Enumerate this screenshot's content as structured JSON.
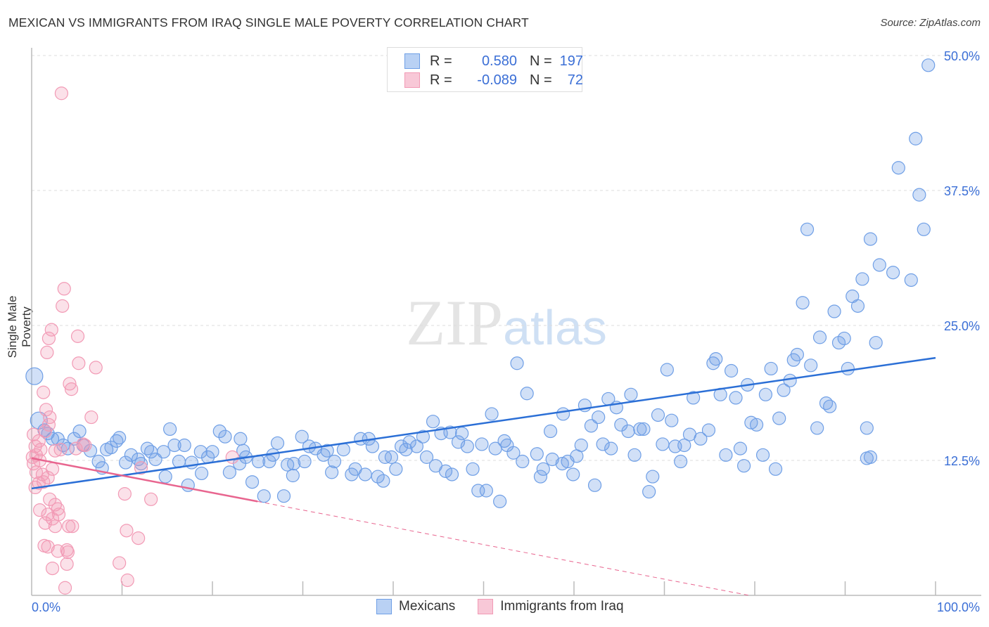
{
  "chart_data": {
    "type": "scatter",
    "title": "MEXICAN VS IMMIGRANTS FROM IRAQ SINGLE MALE POVERTY CORRELATION CHART",
    "source": "Source: ZipAtlas.com",
    "xlabel": "",
    "ylabel": "Single Male Poverty",
    "xlim": [
      0,
      100
    ],
    "ylim": [
      0,
      52
    ],
    "x_tick_labels": [
      "0.0%",
      "100.0%"
    ],
    "y_ticks": [
      12.5,
      25.0,
      37.5,
      50.0
    ],
    "y_tick_labels": [
      "12.5%",
      "25.0%",
      "37.5%",
      "50.0%"
    ],
    "grid": true,
    "watermark": "ZIPatlas",
    "legend": {
      "placement": "top-center",
      "rows": [
        {
          "r_label": "R =",
          "r_value": "0.580",
          "n_label": "N =",
          "n_value": "197"
        },
        {
          "r_label": "R =",
          "r_value": "-0.089",
          "n_label": "N =",
          "n_value": "72"
        }
      ]
    },
    "series": [
      {
        "name": "Mexicans",
        "color": "#6f9fe6",
        "line_color": "#2b6fd6",
        "trend": {
          "x0": 0,
          "y0": 9.9,
          "x1": 100,
          "y1": 22.0
        },
        "points": [
          [
            99.2,
            49.1
          ],
          [
            97.8,
            42.3
          ],
          [
            95.9,
            39.6
          ],
          [
            98.2,
            37.1
          ],
          [
            98.7,
            33.9
          ],
          [
            85.8,
            33.9
          ],
          [
            92.8,
            33.0
          ],
          [
            93.8,
            30.6
          ],
          [
            95.3,
            29.9
          ],
          [
            97.3,
            29.2
          ],
          [
            91.9,
            29.3
          ],
          [
            90.8,
            27.7
          ],
          [
            91.4,
            26.8
          ],
          [
            85.3,
            27.1
          ],
          [
            88.8,
            26.3
          ],
          [
            87.2,
            23.9
          ],
          [
            89.9,
            23.8
          ],
          [
            89.3,
            23.4
          ],
          [
            93.4,
            23.4
          ],
          [
            84.7,
            22.3
          ],
          [
            84.3,
            21.8
          ],
          [
            86.2,
            21.3
          ],
          [
            90.3,
            21.0
          ],
          [
            81.8,
            21.0
          ],
          [
            75.7,
            21.9
          ],
          [
            75.4,
            21.5
          ],
          [
            77.4,
            20.8
          ],
          [
            70.3,
            20.9
          ],
          [
            53.7,
            21.5
          ],
          [
            83.9,
            19.9
          ],
          [
            79.2,
            19.5
          ],
          [
            83.2,
            19.0
          ],
          [
            81.2,
            18.6
          ],
          [
            76.2,
            18.6
          ],
          [
            77.9,
            18.3
          ],
          [
            73.2,
            18.3
          ],
          [
            66.3,
            18.6
          ],
          [
            63.8,
            18.2
          ],
          [
            61.2,
            17.6
          ],
          [
            54.8,
            18.7
          ],
          [
            87.9,
            17.8
          ],
          [
            88.3,
            17.5
          ],
          [
            64.7,
            17.4
          ],
          [
            58.8,
            16.8
          ],
          [
            50.9,
            16.8
          ],
          [
            69.3,
            16.7
          ],
          [
            82.7,
            16.4
          ],
          [
            79.6,
            16.0
          ],
          [
            70.8,
            16.2
          ],
          [
            62.7,
            16.5
          ],
          [
            65.2,
            15.8
          ],
          [
            61.9,
            15.7
          ],
          [
            80.2,
            15.8
          ],
          [
            86.9,
            15.5
          ],
          [
            92.4,
            15.5
          ],
          [
            67.3,
            15.4
          ],
          [
            67.7,
            15.4
          ],
          [
            66.0,
            15.2
          ],
          [
            74.9,
            15.3
          ],
          [
            72.8,
            14.9
          ],
          [
            74.0,
            14.5
          ],
          [
            57.4,
            15.2
          ],
          [
            44.4,
            16.1
          ],
          [
            46.3,
            15.1
          ],
          [
            47.6,
            15.0
          ],
          [
            45.3,
            15.0
          ],
          [
            43.3,
            14.7
          ],
          [
            41.8,
            14.2
          ],
          [
            42.6,
            13.8
          ],
          [
            40.9,
            13.8
          ],
          [
            41.4,
            13.5
          ],
          [
            47.2,
            14.2
          ],
          [
            48.2,
            13.8
          ],
          [
            49.8,
            14.0
          ],
          [
            51.3,
            13.6
          ],
          [
            52.3,
            14.3
          ],
          [
            52.6,
            13.9
          ],
          [
            53.3,
            13.2
          ],
          [
            55.9,
            13.1
          ],
          [
            54.3,
            12.4
          ],
          [
            57.6,
            12.6
          ],
          [
            58.7,
            12.2
          ],
          [
            59.3,
            12.4
          ],
          [
            60.3,
            12.9
          ],
          [
            60.8,
            13.9
          ],
          [
            63.2,
            14.0
          ],
          [
            64.1,
            13.6
          ],
          [
            66.7,
            13.0
          ],
          [
            69.8,
            14.0
          ],
          [
            71.2,
            13.8
          ],
          [
            72.2,
            13.9
          ],
          [
            71.8,
            12.4
          ],
          [
            76.8,
            13.0
          ],
          [
            78.4,
            13.6
          ],
          [
            78.8,
            12.0
          ],
          [
            80.9,
            13.0
          ],
          [
            82.3,
            11.7
          ],
          [
            92.4,
            12.7
          ],
          [
            92.8,
            12.8
          ],
          [
            68.7,
            11.0
          ],
          [
            62.3,
            10.2
          ],
          [
            68.3,
            9.6
          ],
          [
            59.9,
            11.2
          ],
          [
            56.3,
            11.0
          ],
          [
            56.6,
            11.7
          ],
          [
            48.8,
            11.7
          ],
          [
            46.5,
            11.2
          ],
          [
            45.8,
            11.5
          ],
          [
            44.7,
            12.0
          ],
          [
            43.7,
            12.8
          ],
          [
            49.4,
            9.7
          ],
          [
            50.3,
            9.7
          ],
          [
            51.8,
            8.7
          ],
          [
            40.3,
            11.7
          ],
          [
            38.9,
            10.6
          ],
          [
            38.3,
            11.0
          ],
          [
            39.1,
            12.8
          ],
          [
            39.8,
            12.8
          ],
          [
            36.9,
            11.2
          ],
          [
            35.8,
            11.7
          ],
          [
            35.4,
            11.2
          ],
          [
            33.5,
            12.4
          ],
          [
            33.2,
            11.4
          ],
          [
            32.3,
            13.0
          ],
          [
            32.7,
            13.4
          ],
          [
            31.4,
            13.6
          ],
          [
            30.7,
            13.8
          ],
          [
            34.5,
            13.5
          ],
          [
            36.4,
            14.5
          ],
          [
            37.3,
            14.5
          ],
          [
            37.7,
            13.8
          ],
          [
            29.9,
            14.7
          ],
          [
            27.2,
            14.1
          ],
          [
            26.7,
            13.0
          ],
          [
            26.3,
            12.4
          ],
          [
            28.3,
            12.1
          ],
          [
            29.0,
            12.2
          ],
          [
            30.2,
            12.4
          ],
          [
            28.9,
            11.1
          ],
          [
            25.1,
            12.4
          ],
          [
            24.4,
            10.5
          ],
          [
            25.7,
            9.2
          ],
          [
            27.9,
            9.2
          ],
          [
            23.0,
            12.2
          ],
          [
            23.4,
            13.4
          ],
          [
            23.7,
            12.8
          ],
          [
            23.1,
            14.5
          ],
          [
            21.4,
            14.7
          ],
          [
            20.8,
            15.2
          ],
          [
            21.9,
            11.4
          ],
          [
            20.0,
            13.3
          ],
          [
            19.5,
            12.8
          ],
          [
            18.7,
            13.3
          ],
          [
            18.8,
            11.3
          ],
          [
            17.7,
            12.3
          ],
          [
            16.9,
            13.9
          ],
          [
            16.3,
            12.4
          ],
          [
            15.8,
            13.9
          ],
          [
            15.3,
            15.4
          ],
          [
            14.6,
            13.3
          ],
          [
            13.7,
            12.6
          ],
          [
            13.2,
            13.3
          ],
          [
            12.8,
            13.6
          ],
          [
            12.1,
            12.2
          ],
          [
            11.8,
            12.6
          ],
          [
            11.0,
            13.0
          ],
          [
            10.4,
            12.3
          ],
          [
            9.7,
            14.6
          ],
          [
            9.4,
            14.3
          ],
          [
            8.8,
            13.7
          ],
          [
            8.3,
            13.5
          ],
          [
            7.4,
            12.4
          ],
          [
            7.8,
            11.8
          ],
          [
            6.5,
            13.4
          ],
          [
            5.7,
            13.9
          ],
          [
            5.3,
            15.2
          ],
          [
            4.7,
            14.5
          ],
          [
            4.0,
            13.6
          ],
          [
            3.5,
            13.9
          ],
          [
            2.9,
            14.5
          ],
          [
            2.3,
            14.5
          ],
          [
            1.8,
            15.0
          ],
          [
            1.4,
            15.3
          ],
          [
            0.8,
            16.2
          ],
          [
            0.3,
            20.3
          ],
          [
            14.8,
            11.0
          ],
          [
            17.3,
            10.2
          ]
        ]
      },
      {
        "name": "Immigrants from Iraq",
        "color": "#f29ab5",
        "line_color": "#e8658f",
        "trend": {
          "x0": 0,
          "y0": 12.7,
          "x1": 25,
          "y1": 8.7,
          "dash_to_x": 80
        },
        "points": [
          [
            3.3,
            46.5
          ],
          [
            3.6,
            28.4
          ],
          [
            3.4,
            26.8
          ],
          [
            2.2,
            24.6
          ],
          [
            1.9,
            23.8
          ],
          [
            1.7,
            22.5
          ],
          [
            5.1,
            24.0
          ],
          [
            5.2,
            21.5
          ],
          [
            7.1,
            21.1
          ],
          [
            4.2,
            19.6
          ],
          [
            4.4,
            19.1
          ],
          [
            1.3,
            18.8
          ],
          [
            1.6,
            17.2
          ],
          [
            2.0,
            16.5
          ],
          [
            6.6,
            16.5
          ],
          [
            1.9,
            15.8
          ],
          [
            1.5,
            15.2
          ],
          [
            0.8,
            14.3
          ],
          [
            5.7,
            14.0
          ],
          [
            5.9,
            13.9
          ],
          [
            4.9,
            13.6
          ],
          [
            3.2,
            13.5
          ],
          [
            2.6,
            13.4
          ],
          [
            22.2,
            12.8
          ],
          [
            0.5,
            13.0
          ],
          [
            0.9,
            12.5
          ],
          [
            0.2,
            12.2
          ],
          [
            2.3,
            11.7
          ],
          [
            0.5,
            11.4
          ],
          [
            1.2,
            11.2
          ],
          [
            1.8,
            10.9
          ],
          [
            0.8,
            10.4
          ],
          [
            0.4,
            10.0
          ],
          [
            1.3,
            10.5
          ],
          [
            12.1,
            11.8
          ],
          [
            10.3,
            9.4
          ],
          [
            13.2,
            8.9
          ],
          [
            2.0,
            8.9
          ],
          [
            2.6,
            8.4
          ],
          [
            2.9,
            8.0
          ],
          [
            0.9,
            7.9
          ],
          [
            1.8,
            7.5
          ],
          [
            3.0,
            7.5
          ],
          [
            2.3,
            7.1
          ],
          [
            1.5,
            6.7
          ],
          [
            2.6,
            6.4
          ],
          [
            4.1,
            6.4
          ],
          [
            4.5,
            6.4
          ],
          [
            10.5,
            6.0
          ],
          [
            11.8,
            5.3
          ],
          [
            1.4,
            4.6
          ],
          [
            1.8,
            4.5
          ],
          [
            3.9,
            4.2
          ],
          [
            4.0,
            4.0
          ],
          [
            2.9,
            4.1
          ],
          [
            2.3,
            2.5
          ],
          [
            3.9,
            2.9
          ],
          [
            9.7,
            3.0
          ],
          [
            10.6,
            1.4
          ],
          [
            3.7,
            0.7
          ],
          [
            0.2,
            14.9
          ],
          [
            0.4,
            13.8
          ],
          [
            1.0,
            13.5
          ],
          [
            0.1,
            12.8
          ]
        ]
      }
    ]
  }
}
